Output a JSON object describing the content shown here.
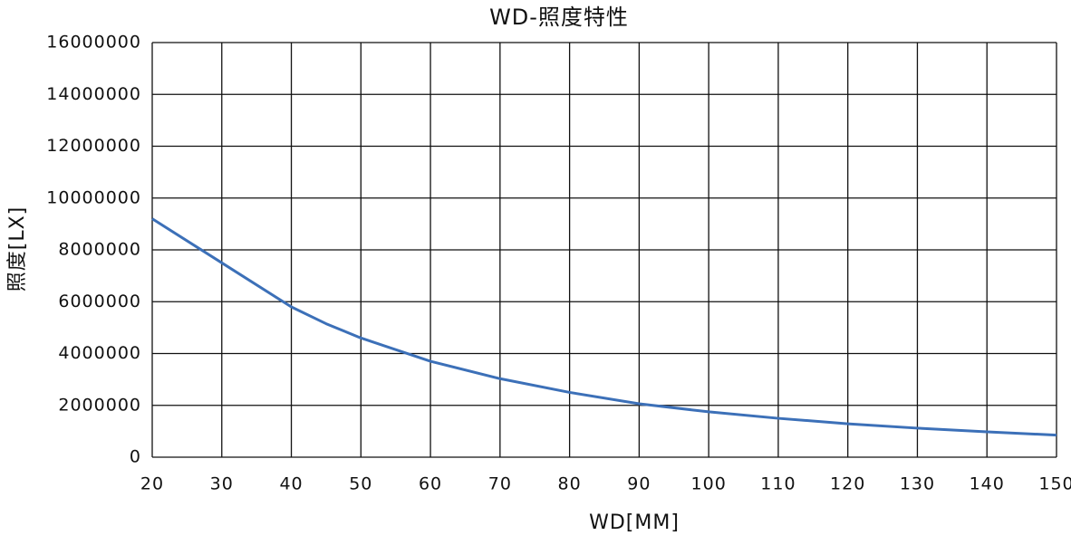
{
  "chart_data": {
    "type": "line",
    "title": "WD-照度特性",
    "x_label": "WD[MM]",
    "y_label": "照度[LX]",
    "x": [
      20,
      30,
      40,
      45,
      50,
      60,
      70,
      80,
      90,
      100,
      110,
      120,
      130,
      140,
      150
    ],
    "series": [
      {
        "name": "照度",
        "color": "#3c70b8",
        "values": [
          9200000,
          7500000,
          5800000,
          5150000,
          4600000,
          3700000,
          3030000,
          2500000,
          2060000,
          1750000,
          1500000,
          1290000,
          1120000,
          980000,
          850000
        ]
      }
    ],
    "xlim": [
      20,
      150
    ],
    "xticks": [
      20,
      30,
      40,
      50,
      60,
      70,
      80,
      90,
      100,
      110,
      120,
      130,
      140,
      150
    ],
    "ylim": [
      0,
      16000000
    ],
    "yticks": [
      0,
      2000000,
      4000000,
      6000000,
      8000000,
      10000000,
      12000000,
      14000000,
      16000000
    ],
    "grid": true
  }
}
